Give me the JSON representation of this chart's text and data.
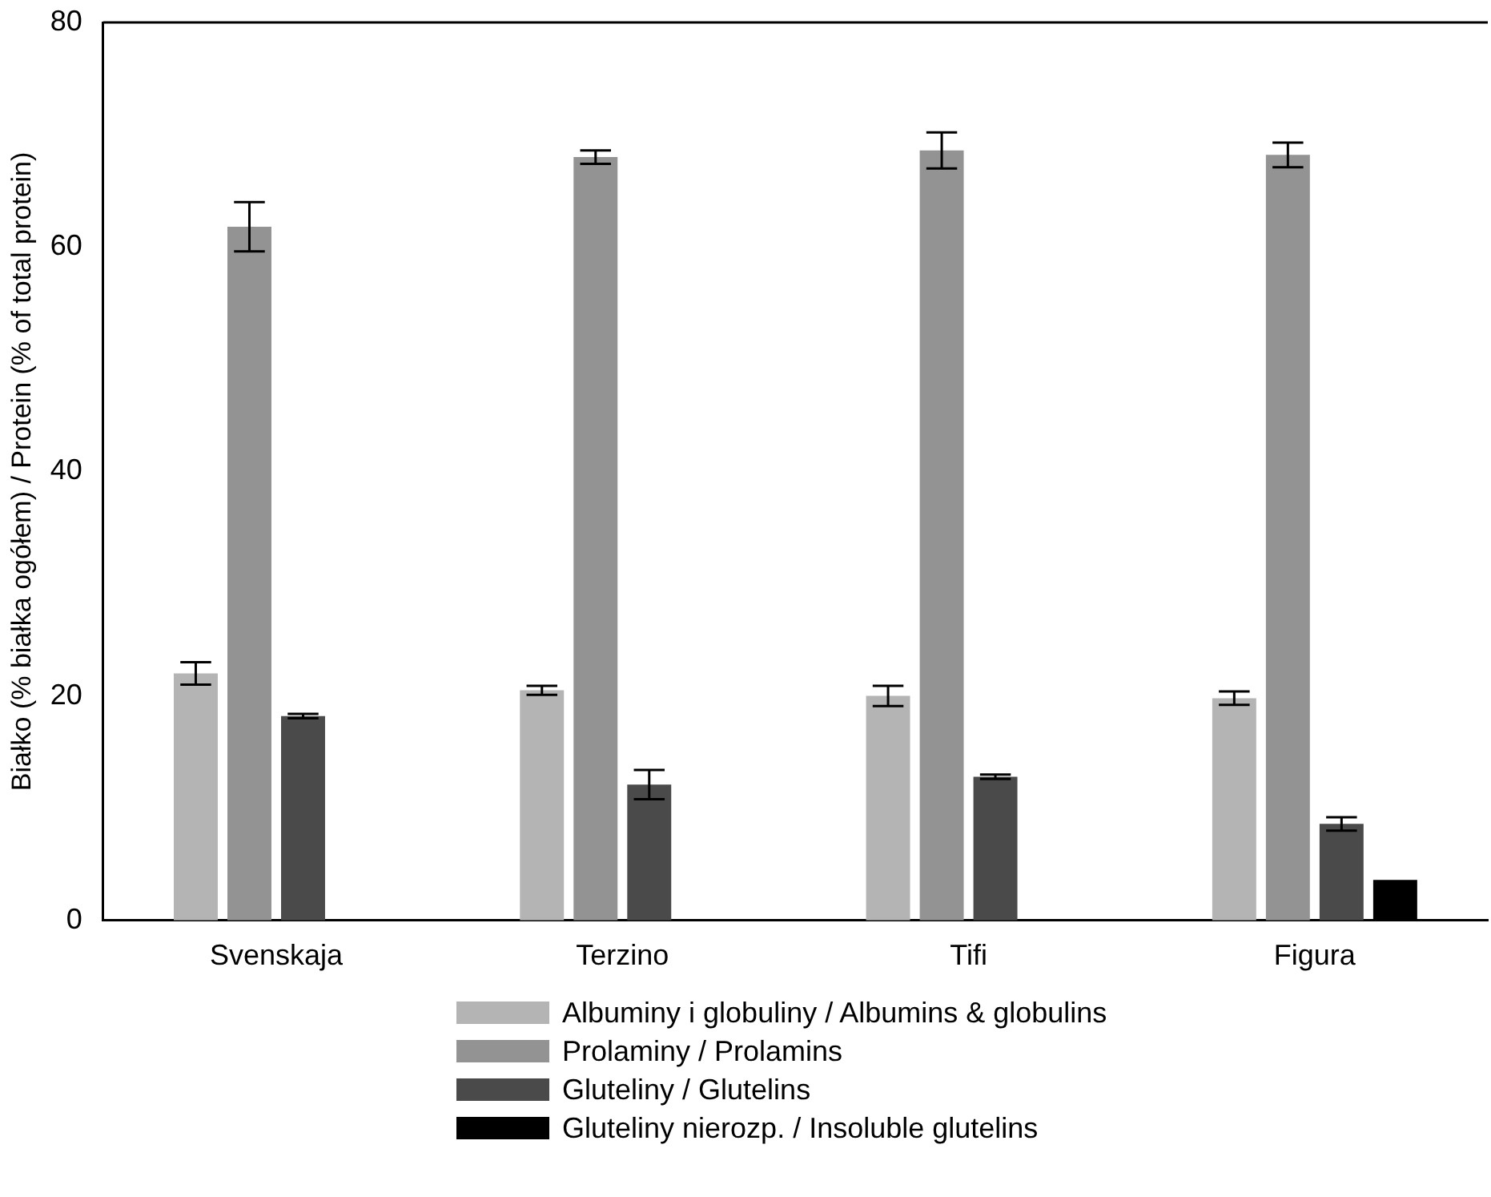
{
  "chart_data": {
    "type": "bar",
    "ylabel": "Białko (% białka ogółem) / Protein (% of total protein)",
    "categories": [
      "Svenskaja",
      "Terzino",
      "Tifi",
      "Figura"
    ],
    "ylim": [
      0,
      80
    ],
    "yticks": [
      0,
      20,
      40,
      60,
      80
    ],
    "grid": false,
    "legend": "bottom",
    "series": [
      {
        "name": "Albuminy i globuliny / Albumins & globulins",
        "color": "#b4b4b4",
        "values": [
          22.0,
          20.5,
          20.0,
          19.8
        ],
        "errors": [
          1.0,
          0.4,
          0.9,
          0.6
        ]
      },
      {
        "name": "Prolaminy / Prolamins",
        "color": "#939393",
        "values": [
          61.8,
          68.0,
          68.6,
          68.2
        ],
        "errors": [
          2.2,
          0.6,
          1.6,
          1.1
        ]
      },
      {
        "name": "Gluteliny / Glutelins",
        "color": "#4a4a4a",
        "values": [
          18.2,
          12.1,
          12.8,
          8.6
        ],
        "errors": [
          0.2,
          1.3,
          0.2,
          0.6
        ]
      },
      {
        "name": "Gluteliny nierozp. / Insoluble glutelins",
        "color": "#000000",
        "values": [
          null,
          null,
          null,
          3.6
        ]
      }
    ]
  }
}
